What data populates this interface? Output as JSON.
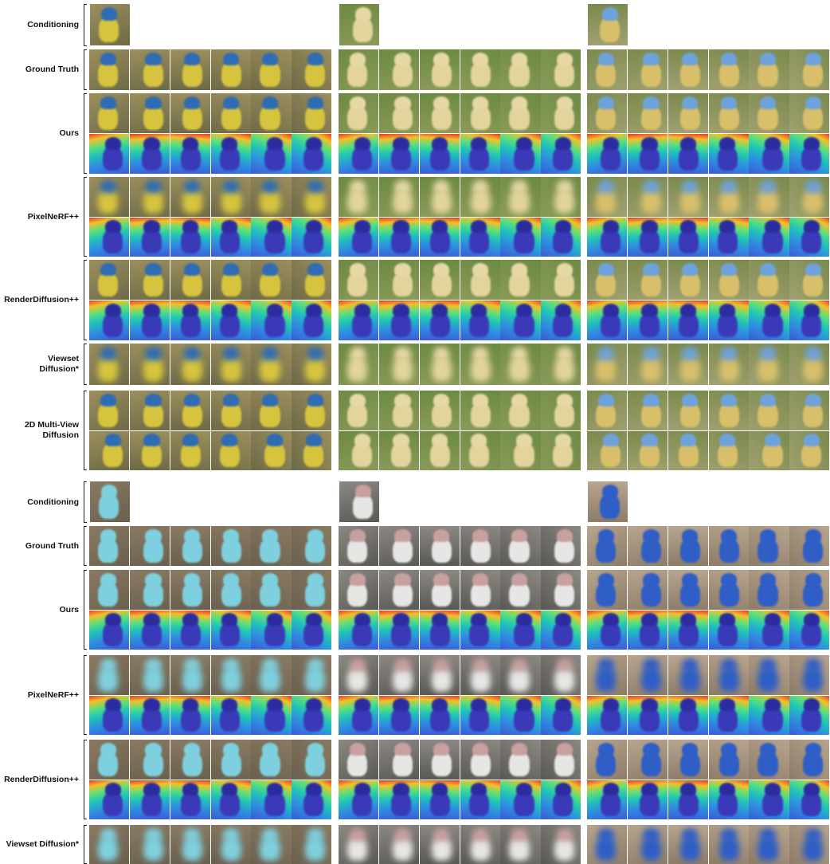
{
  "blocks": [
    {
      "rows": [
        {
          "label": "Conditioning"
        },
        {
          "label": "Ground Truth"
        },
        {
          "label": "Ours"
        },
        {
          "label": "PixelNeRF++"
        },
        {
          "label": "RenderDiffusion++"
        },
        {
          "label": "Viewset\nDiffusion*"
        },
        {
          "label": "2D Multi-View\nDiffusion"
        }
      ]
    },
    {
      "rows": [
        {
          "label": "Conditioning"
        },
        {
          "label": "Ground Truth"
        },
        {
          "label": "Ours"
        },
        {
          "label": "PixelNeRF++"
        },
        {
          "label": "RenderDiffusion++"
        },
        {
          "label": "Viewset Diffusion*"
        }
      ]
    }
  ]
}
